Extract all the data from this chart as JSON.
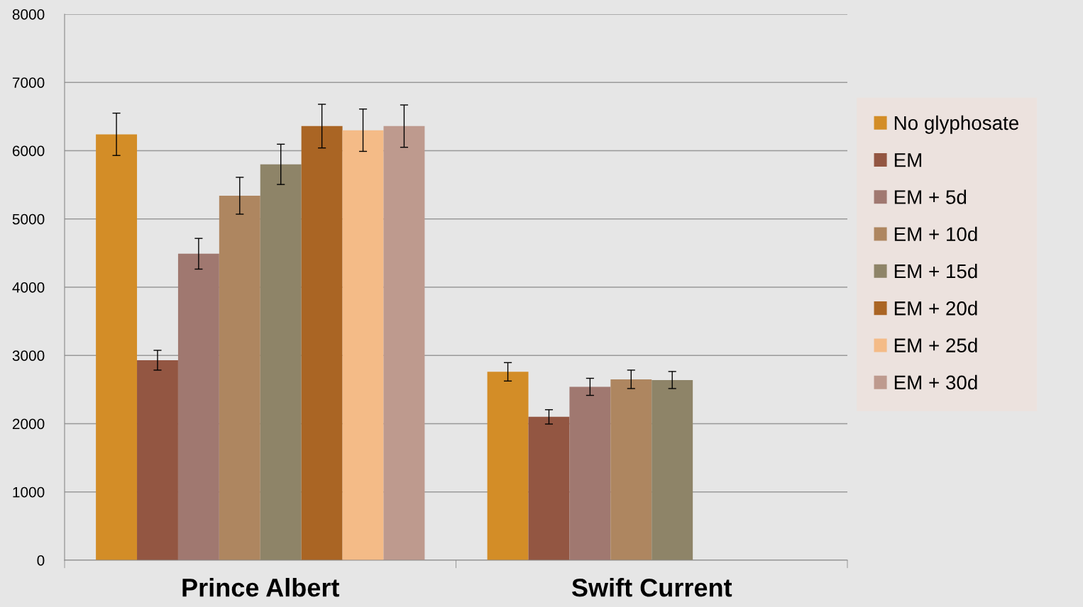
{
  "chart_data": {
    "type": "bar",
    "categories": [
      "Prince Albert",
      "Swift Current"
    ],
    "series": [
      {
        "name": "No glyphosate",
        "color": "#d38d27",
        "values": [
          6240,
          2760
        ],
        "errors": [
          310,
          135
        ]
      },
      {
        "name": "EM",
        "color": "#935642",
        "values": [
          2930,
          2100
        ],
        "errors": [
          145,
          105
        ]
      },
      {
        "name": "EM + 5d",
        "color": "#a07870",
        "values": [
          4490,
          2540
        ],
        "errors": [
          225,
          125
        ]
      },
      {
        "name": "EM + 10d",
        "color": "#ae8660",
        "values": [
          5340,
          2650
        ],
        "errors": [
          270,
          135
        ]
      },
      {
        "name": "EM + 15d",
        "color": "#8e8468",
        "values": [
          5800,
          2640
        ],
        "errors": [
          295,
          125
        ]
      },
      {
        "name": "EM + 20d",
        "color": "#aa6524",
        "values": [
          6360,
          null
        ],
        "errors": [
          320,
          null
        ]
      },
      {
        "name": "EM + 25d",
        "color": "#f4bb87",
        "values": [
          6300,
          null
        ],
        "errors": [
          310,
          null
        ]
      },
      {
        "name": "EM + 30d",
        "color": "#be9a8e",
        "values": [
          6360,
          null
        ],
        "errors": [
          310,
          null
        ]
      }
    ],
    "ylim": [
      0,
      8000
    ],
    "yticks": [
      0,
      1000,
      2000,
      3000,
      4000,
      5000,
      6000,
      7000,
      8000
    ],
    "grid": "y",
    "legend": "right"
  }
}
